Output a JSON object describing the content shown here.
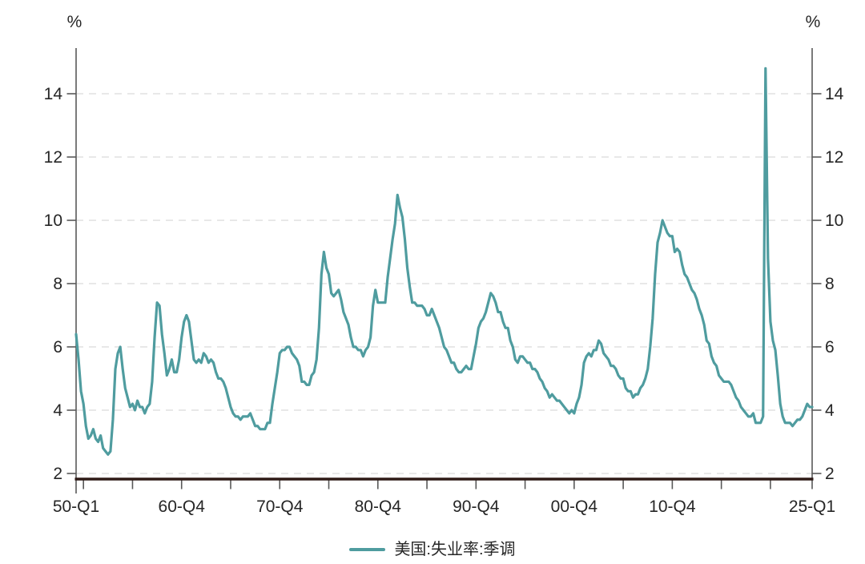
{
  "chart_data": {
    "type": "line",
    "title": "",
    "unit_left": "%",
    "unit_right": "%",
    "grid": "horizontal-dashed",
    "legend_position": "bottom-center",
    "y_ticks": [
      2,
      4,
      6,
      8,
      10,
      12,
      14
    ],
    "y_axis_range": [
      2,
      15.4
    ],
    "x_axis_range_years": [
      1950.0,
      2025.0
    ],
    "x_ticks": [
      {
        "t": 1950.0,
        "label": "50-Q1"
      },
      {
        "t": 1950.75,
        "label": ""
      },
      {
        "t": 1955.75,
        "label": ""
      },
      {
        "t": 1960.75,
        "label": "60-Q4"
      },
      {
        "t": 1965.75,
        "label": ""
      },
      {
        "t": 1970.75,
        "label": "70-Q4"
      },
      {
        "t": 1975.75,
        "label": ""
      },
      {
        "t": 1980.75,
        "label": "80-Q4"
      },
      {
        "t": 1985.75,
        "label": ""
      },
      {
        "t": 1990.75,
        "label": "90-Q4"
      },
      {
        "t": 1995.75,
        "label": ""
      },
      {
        "t": 2000.75,
        "label": "00-Q4"
      },
      {
        "t": 2005.75,
        "label": ""
      },
      {
        "t": 2010.75,
        "label": "10-Q4"
      },
      {
        "t": 2015.75,
        "label": ""
      },
      {
        "t": 2020.75,
        "label": ""
      },
      {
        "t": 2025.0,
        "label": "25-Q1"
      }
    ],
    "colors": {
      "line": "#4f9c9f",
      "grid": "#d9d9d9",
      "axis_side": "#595959",
      "axis_bottom": "#2e1a16",
      "text": "#262626"
    },
    "series": [
      {
        "name": "美国:失业率:季调",
        "color": "#4f9c9f",
        "frequency": "quarterly",
        "start": "1950-Q1",
        "end": "2025-Q1",
        "values": [
          6.4,
          5.6,
          4.6,
          4.2,
          3.5,
          3.1,
          3.2,
          3.4,
          3.1,
          3.0,
          3.2,
          2.8,
          2.7,
          2.6,
          2.7,
          3.7,
          5.3,
          5.8,
          6.0,
          5.3,
          4.7,
          4.4,
          4.1,
          4.2,
          4.0,
          4.3,
          4.1,
          4.1,
          3.9,
          4.1,
          4.2,
          4.9,
          6.3,
          7.4,
          7.3,
          6.4,
          5.8,
          5.1,
          5.3,
          5.6,
          5.2,
          5.2,
          5.6,
          6.3,
          6.8,
          7.0,
          6.8,
          6.2,
          5.6,
          5.5,
          5.6,
          5.5,
          5.8,
          5.7,
          5.5,
          5.6,
          5.5,
          5.2,
          5.0,
          5.0,
          4.9,
          4.7,
          4.4,
          4.1,
          3.9,
          3.8,
          3.8,
          3.7,
          3.8,
          3.8,
          3.8,
          3.9,
          3.7,
          3.5,
          3.5,
          3.4,
          3.4,
          3.4,
          3.6,
          3.6,
          4.2,
          4.7,
          5.2,
          5.8,
          5.9,
          5.9,
          6.0,
          6.0,
          5.8,
          5.7,
          5.6,
          5.4,
          4.9,
          4.9,
          4.8,
          4.8,
          5.1,
          5.2,
          5.6,
          6.6,
          8.3,
          9.0,
          8.5,
          8.3,
          7.7,
          7.6,
          7.7,
          7.8,
          7.5,
          7.1,
          6.9,
          6.7,
          6.3,
          6.0,
          6.0,
          5.9,
          5.9,
          5.7,
          5.9,
          6.0,
          6.3,
          7.3,
          7.8,
          7.4,
          7.4,
          7.4,
          7.4,
          8.2,
          8.8,
          9.4,
          9.9,
          10.8,
          10.4,
          10.1,
          9.4,
          8.5,
          7.9,
          7.4,
          7.4,
          7.3,
          7.3,
          7.3,
          7.2,
          7.0,
          7.0,
          7.2,
          7.0,
          6.8,
          6.6,
          6.3,
          6.0,
          5.9,
          5.7,
          5.5,
          5.5,
          5.3,
          5.2,
          5.2,
          5.3,
          5.4,
          5.3,
          5.3,
          5.7,
          6.1,
          6.6,
          6.8,
          6.9,
          7.1,
          7.4,
          7.7,
          7.6,
          7.4,
          7.1,
          7.1,
          6.8,
          6.6,
          6.6,
          6.2,
          6.0,
          5.6,
          5.5,
          5.7,
          5.7,
          5.6,
          5.5,
          5.5,
          5.3,
          5.3,
          5.2,
          5.0,
          4.9,
          4.7,
          4.6,
          4.4,
          4.5,
          4.4,
          4.3,
          4.3,
          4.2,
          4.1,
          4.0,
          3.9,
          4.0,
          3.9,
          4.2,
          4.4,
          4.8,
          5.5,
          5.7,
          5.8,
          5.7,
          5.9,
          5.9,
          6.2,
          6.1,
          5.8,
          5.7,
          5.6,
          5.4,
          5.4,
          5.3,
          5.1,
          5.0,
          5.0,
          4.7,
          4.6,
          4.6,
          4.4,
          4.5,
          4.5,
          4.7,
          4.8,
          5.0,
          5.3,
          6.0,
          6.9,
          8.3,
          9.3,
          9.6,
          10.0,
          9.8,
          9.6,
          9.5,
          9.5,
          9.0,
          9.1,
          9.0,
          8.6,
          8.3,
          8.2,
          8.0,
          7.8,
          7.7,
          7.5,
          7.2,
          7.0,
          6.7,
          6.2,
          6.1,
          5.7,
          5.5,
          5.4,
          5.1,
          5.0,
          4.9,
          4.9,
          4.9,
          4.8,
          4.6,
          4.4,
          4.3,
          4.1,
          4.0,
          3.9,
          3.8,
          3.8,
          3.9,
          3.6,
          3.6,
          3.6,
          3.8,
          14.8,
          8.8,
          6.8,
          6.2,
          5.9,
          5.1,
          4.2,
          3.8,
          3.6,
          3.6,
          3.6,
          3.5,
          3.6,
          3.7,
          3.7,
          3.8,
          4.0,
          4.2,
          4.1,
          4.1
        ]
      }
    ]
  }
}
